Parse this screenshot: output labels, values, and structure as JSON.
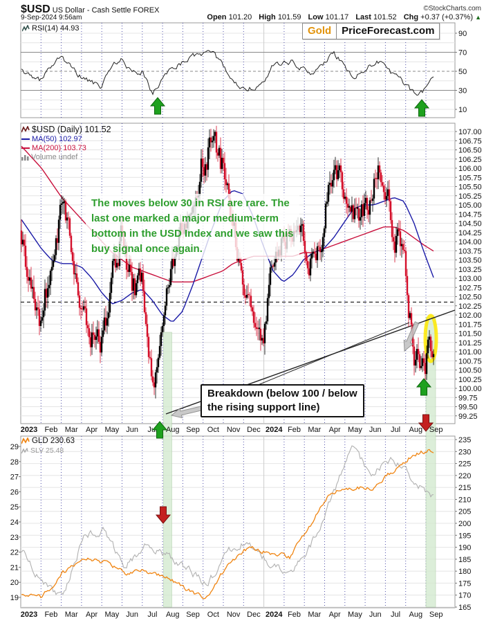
{
  "header": {
    "symbol": "$USD",
    "description": "US Dollar - Cash Settle FOREX",
    "source": "©StockCharts.com",
    "datetime": "9-Sep-2024 9:56am",
    "quote": {
      "open_label": "Open",
      "open": "101.20",
      "high_label": "High",
      "high": "101.59",
      "low_label": "Low",
      "low": "101.17",
      "last_label": "Last",
      "last": "101.52",
      "chg_label": "Chg",
      "chg": "+0.37 (+0.37%)",
      "direction": "▲"
    }
  },
  "badge": {
    "gold": "Gold",
    "site": "PriceForecast.com"
  },
  "legends": {
    "rsi": "RSI(14) 44.93",
    "usd": "$USD (Daily) 101.52",
    "ma50": "MA(50) 102.97",
    "ma200": "MA(200) 103.73",
    "volume": "Volume undef",
    "gld": "GLD 230.63",
    "slv": "SLV 25.48"
  },
  "annotations": {
    "rsi_note_lines": [
      "The moves below 30 in RSI are rare. The",
      "last one marked a major medium-term",
      "bottom in the USD Index and we saw this",
      "buy signal once again."
    ],
    "breakdown_lines": [
      "Breakdown (below 100 / below",
      "the rising support line)"
    ]
  },
  "axes": {
    "months": [
      "2023",
      "Feb",
      "Mar",
      "Apr",
      "May",
      "Jun",
      "Jul",
      "Aug",
      "Sep",
      "Oct",
      "Nov",
      "Dec",
      "2024",
      "Feb",
      "Mar",
      "Apr",
      "May",
      "Jun",
      "Jul",
      "Aug",
      "Sep"
    ],
    "rsi_ticks": [
      90,
      70,
      50,
      30,
      10
    ],
    "price_ylim": [
      99.25,
      107.0
    ],
    "price_tick_step": 0.25,
    "gld_right_ticks": [
      235,
      230,
      225,
      220,
      215,
      210,
      205,
      200,
      195,
      190,
      185,
      180,
      175,
      170,
      165
    ],
    "slv_left_ticks": [
      29,
      28,
      27,
      26,
      25,
      24,
      23,
      22,
      21,
      20,
      19
    ]
  },
  "chart_data": [
    {
      "type": "line",
      "title": "RSI(14)",
      "current": 44.93,
      "ylabel": "RSI",
      "ylim": [
        0,
        100
      ],
      "reference_lines": {
        "overbought": 70,
        "midline": 50,
        "oversold": 30
      },
      "x_sampling": "semi-monthly, Jan 2023 - 9 Sep 2024",
      "values": [
        55,
        42,
        40,
        56,
        66,
        52,
        43,
        38,
        34,
        56,
        63,
        46,
        50,
        24,
        42,
        55,
        60,
        65,
        68,
        67,
        58,
        37,
        34,
        33,
        36,
        57,
        58,
        61,
        52,
        47,
        56,
        69,
        58,
        43,
        50,
        59,
        61,
        45,
        37,
        27,
        30,
        45
      ],
      "markers": [
        "green up arrow at RSI<30 Jul 2023",
        "green up arrow at RSI<30 Aug 2024"
      ]
    },
    {
      "type": "candlestick",
      "title": "$USD Daily",
      "last": 101.52,
      "ylim": [
        99.25,
        107.0
      ],
      "x_sampling": "semi-monthly close anchors, Jan 2023 - 9 Sep 2024",
      "close_anchors": [
        104.3,
        102.3,
        101.9,
        103.3,
        104.9,
        103.6,
        102.2,
        101.6,
        101.2,
        102.9,
        104.2,
        102.6,
        103.0,
        99.8,
        101.9,
        103.2,
        104.5,
        105.4,
        106.2,
        106.6,
        106.0,
        104.2,
        103.3,
        101.9,
        101.4,
        103.4,
        103.9,
        104.2,
        103.8,
        103.4,
        104.4,
        106.1,
        105.6,
        104.5,
        104.7,
        105.5,
        105.9,
        104.3,
        103.3,
        101.1,
        100.6,
        101.5
      ],
      "ma50": {
        "name": "MA(50)",
        "last": 102.97,
        "values": [
          104.6,
          104.2,
          103.8,
          103.5,
          103.4,
          103.4,
          103.3,
          103.0,
          102.6,
          102.3,
          102.4,
          102.6,
          102.7,
          102.4,
          102.0,
          101.8,
          102.1,
          102.8,
          103.6,
          104.4,
          105.1,
          105.4,
          105.3,
          104.7,
          103.9,
          103.2,
          102.9,
          103.1,
          103.5,
          103.7,
          103.8,
          104.1,
          104.5,
          104.9,
          105.0,
          105.0,
          105.1,
          105.2,
          105.1,
          104.5,
          103.7,
          102.97
        ]
      },
      "ma200": {
        "name": "MA(200)",
        "last": 103.73,
        "values": [
          106.6,
          106.3,
          106.0,
          105.6,
          105.2,
          104.9,
          104.6,
          104.3,
          104.0,
          103.7,
          103.5,
          103.3,
          103.2,
          103.1,
          103.0,
          102.9,
          102.9,
          102.9,
          103.0,
          103.1,
          103.2,
          103.4,
          103.5,
          103.6,
          103.6,
          103.6,
          103.6,
          103.6,
          103.7,
          103.7,
          103.8,
          103.9,
          104.0,
          104.1,
          104.2,
          104.3,
          104.4,
          104.4,
          104.3,
          104.1,
          103.9,
          103.73
        ]
      },
      "dashed_level": 102.35,
      "support_line": "rising support line from Jul 2023 low to Sep 2024",
      "markers": [
        "green vertical band Aug 2023",
        "green vertical band Sep 2024",
        "green up arrow Sep 2024",
        "red down arrow Sep 2024 axis",
        "yellow ellipse around Sep 2024 candles"
      ]
    },
    {
      "type": "line",
      "title": "GLD and SLV",
      "categories": [
        "Jan 2023",
        "Feb",
        "Mar",
        "Apr",
        "May",
        "Jun",
        "Jul",
        "Aug",
        "Sep",
        "Oct",
        "Nov",
        "Dec",
        "Jan 2024",
        "Feb",
        "Mar",
        "Apr",
        "May",
        "Jun",
        "Jul",
        "Aug",
        "Sep"
      ],
      "series": [
        {
          "name": "GLD",
          "last": 230.63,
          "axis": "right",
          "ylim": [
            165,
            235
          ],
          "values": [
            171,
            169,
            179,
            186,
            184,
            179,
            180,
            178,
            172,
            169,
            183,
            190,
            188,
            186,
            199,
            213,
            215,
            215,
            222,
            229,
            230.63
          ]
        },
        {
          "name": "SLV",
          "last": 25.48,
          "axis": "left",
          "ylim": [
            19,
            29
          ],
          "values": [
            22.2,
            20.0,
            19.0,
            23.0,
            23.5,
            21.0,
            22.5,
            21.8,
            20.9,
            19.8,
            22.0,
            22.8,
            21.2,
            20.6,
            22.4,
            25.5,
            28.8,
            27.2,
            28.3,
            26.8,
            25.48
          ]
        }
      ],
      "markers": [
        "red down arrow Aug 2023 band"
      ]
    }
  ],
  "colors": {
    "candle_up": "#000000",
    "candle_down": "#d40f2a",
    "ma50": "#1a1aa6",
    "ma200": "#c8103c",
    "rsi_line": "#222222",
    "gld": "#f08410",
    "slv": "#b0b0b0",
    "band_green": "#d4ead0",
    "arrow_green": "#1ea11e",
    "arrow_green_edge": "#0d660d",
    "arrow_red": "#c42020",
    "arrow_red_edge": "#7a0f0f",
    "month_grid": "#3a3aa0",
    "year_grid": "#cccccc",
    "light_grid": "#e4e4e4",
    "panel_border": "#999999",
    "annotation_green": "#2e9e2e",
    "highlight_yellow": "#ffe900",
    "gray_arrow": "#c4c4c4"
  }
}
